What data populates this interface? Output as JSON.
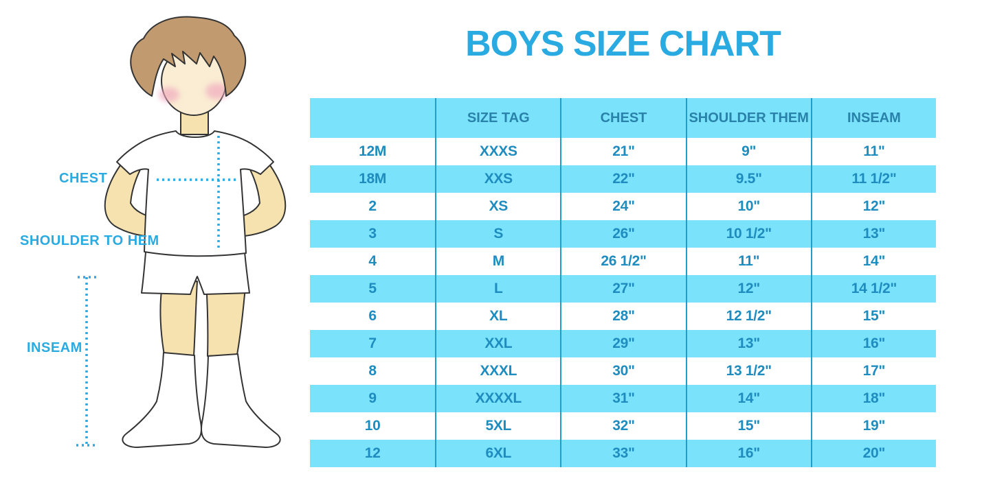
{
  "title": "BOYS SIZE CHART",
  "colors": {
    "accent": "#29ABE2",
    "table_row_blue": "#7BE2FB",
    "table_divider": "#1E9EC8",
    "table_cell_text": "#1E8CBE",
    "table_header_text": "#2882AA",
    "skin": "#F6E2AE",
    "face": "#FAEDD3",
    "hair": "#C19A6F",
    "blush": "#F0A8BE",
    "outline": "#333333"
  },
  "figure": {
    "description": "boy-measurement-illustration",
    "labels": {
      "chest": "CHEST",
      "shoulder_to_hem": "SHOULDER TO HEM",
      "inseam": "INSEAM"
    }
  },
  "chart_data": {
    "type": "table",
    "title": "BOYS SIZE CHART",
    "columns": [
      "",
      "SIZE TAG",
      "CHEST",
      "SHOULDER THEM",
      "INSEAM"
    ],
    "rows": [
      [
        "12M",
        "XXXS",
        "21\"",
        "9\"",
        "11\""
      ],
      [
        "18M",
        "XXS",
        "22\"",
        "9.5\"",
        "11 1/2\""
      ],
      [
        "2",
        "XS",
        "24\"",
        "10\"",
        "12\""
      ],
      [
        "3",
        "S",
        "26\"",
        "10 1/2\"",
        "13\""
      ],
      [
        "4",
        "M",
        "26 1/2\"",
        "11\"",
        "14\""
      ],
      [
        "5",
        "L",
        "27\"",
        "12\"",
        "14 1/2\""
      ],
      [
        "6",
        "XL",
        "28\"",
        "12 1/2\"",
        "15\""
      ],
      [
        "7",
        "XXL",
        "29\"",
        "13\"",
        "16\""
      ],
      [
        "8",
        "XXXL",
        "30\"",
        "13 1/2\"",
        "17\""
      ],
      [
        "9",
        "XXXXL",
        "31\"",
        "14\"",
        "18\""
      ],
      [
        "10",
        "5XL",
        "32\"",
        "15\"",
        "19\""
      ],
      [
        "12",
        "6XL",
        "33\"",
        "16\"",
        "20\""
      ]
    ],
    "layout": {
      "alternating_rows": "white / light-blue starting white",
      "column_dividers": true,
      "outer_border": false
    }
  }
}
